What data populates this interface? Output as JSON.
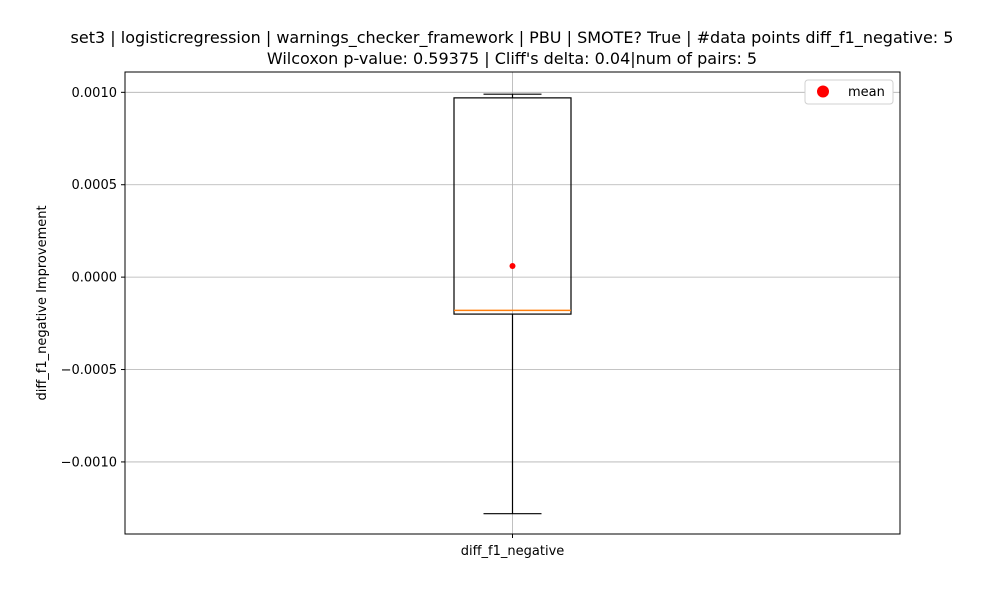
{
  "chart_data": {
    "type": "box",
    "title_line1": "set3 | logisticregression | warnings_checker_framework | PBU | SMOTE? True | #data points diff_f1_negative: 5",
    "title_line2": "Wilcoxon p-value: 0.59375 | Cliff's delta: 0.04|num of pairs: 5",
    "xlabel": "",
    "ylabel": "diff_f1_negative Improvement",
    "categories": [
      "diff_f1_negative"
    ],
    "box": {
      "whisker_low": -0.00128,
      "q1": -0.0002,
      "median": -0.00018,
      "q3": 0.00097,
      "whisker_high": 0.00099,
      "mean": 6e-05
    },
    "ylim": [
      -0.00139,
      0.00111
    ],
    "y_ticks": [
      -0.001,
      -0.0005,
      0.0,
      0.0005,
      0.001
    ],
    "y_tick_labels": [
      "−0.0010",
      "−0.0005",
      "0.0000",
      "0.0005",
      "0.0010"
    ],
    "grid": true,
    "legend": {
      "placement": "top-right",
      "entries": [
        {
          "label": "mean",
          "marker": "dot"
        }
      ]
    },
    "colors": {
      "box": "#000000",
      "median": "#ff7f0e",
      "mean": "#ff0000",
      "grid": "#b0b0b0"
    }
  }
}
